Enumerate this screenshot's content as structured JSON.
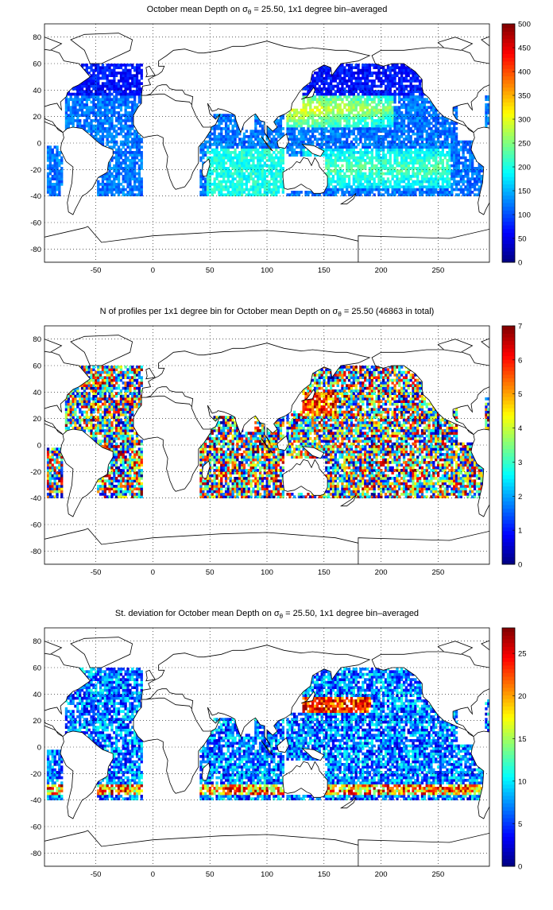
{
  "panels": [
    {
      "title_pre": "October mean Depth on σ",
      "title_sub": "θ",
      "title_post": " = 25.50, 1x1 degree bin–averaged",
      "colorbar_ticks": [
        "0",
        "50",
        "100",
        "150",
        "200",
        "250",
        "300",
        "350",
        "400",
        "450",
        "500"
      ],
      "colorbar_range": [
        0,
        500
      ]
    },
    {
      "title_pre": "N of profiles per 1x1 degree bin for October mean Depth on σ",
      "title_sub": "θ",
      "title_post": " = 25.50 (46863 in total)",
      "colorbar_ticks": [
        "0",
        "1",
        "2",
        "3",
        "4",
        "5",
        "6",
        "7"
      ],
      "colorbar_range": [
        0,
        7
      ]
    },
    {
      "title_pre": "St. deviation for October mean Depth on σ",
      "title_sub": "θ",
      "title_post": " = 25.50, 1x1 degree bin–averaged",
      "colorbar_ticks": [
        "0",
        "5",
        "10",
        "15",
        "20",
        "25"
      ],
      "colorbar_range": [
        0,
        28
      ]
    }
  ],
  "axes": {
    "x_ticks": [
      "-50",
      "0",
      "50",
      "100",
      "150",
      "200",
      "250"
    ],
    "y_ticks": [
      "80",
      "60",
      "40",
      "20",
      "0",
      "-20",
      "-40",
      "-60",
      "-80"
    ],
    "xlim": [
      -95,
      295
    ],
    "ylim": [
      -90,
      90
    ],
    "grid": "dotted"
  },
  "colormap": "jet",
  "colors": {
    "land_outline": "#000000",
    "background": "#ffffff"
  }
}
